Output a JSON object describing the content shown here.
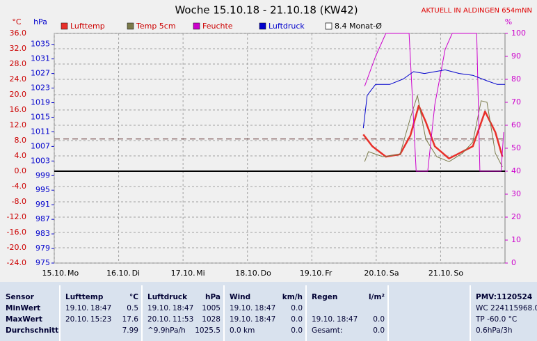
{
  "chart_data": {
    "type": "line",
    "title": "Woche 15.10.18 - 21.10.18 (KW42)",
    "station": "AKTUELL IN ALDINGEN 654mNN",
    "y_unit": "°C",
    "y2_unit": "hPa",
    "y3_unit": "%",
    "xlim": [
      0,
      7
    ],
    "xticks": [
      {
        "value": 0,
        "label": "15.10.",
        "day": "Mo"
      },
      {
        "value": 1,
        "label": "16.10.",
        "day": "Di"
      },
      {
        "value": 2,
        "label": "17.10.",
        "day": "Mi"
      },
      {
        "value": 3,
        "label": "18.10.",
        "day": "Do"
      },
      {
        "value": 4,
        "label": "19.10.",
        "day": "Fr"
      },
      {
        "value": 5,
        "label": "20.10.",
        "day": "Sa"
      },
      {
        "value": 6,
        "label": "21.10.",
        "day": "So"
      }
    ],
    "ylim": [
      -24,
      36
    ],
    "yticks": [
      {
        "value": -24,
        "label": "-24.0"
      },
      {
        "value": -20,
        "label": "-20.0"
      },
      {
        "value": -16,
        "label": "-16.0"
      },
      {
        "value": -12,
        "label": "-12.0"
      },
      {
        "value": -8,
        "label": "-8.0"
      },
      {
        "value": -4,
        "label": "-4.0"
      },
      {
        "value": 0,
        "label": "0.0"
      },
      {
        "value": 4,
        "label": "4.0"
      },
      {
        "value": 8,
        "label": "8.0"
      },
      {
        "value": 12,
        "label": "12.0"
      },
      {
        "value": 16,
        "label": "16.0"
      },
      {
        "value": 20,
        "label": "20.0"
      },
      {
        "value": 24,
        "label": "24.0"
      },
      {
        "value": 28,
        "label": "28.0"
      },
      {
        "value": 32,
        "label": "32.0"
      },
      {
        "value": 36,
        "label": "36.0"
      }
    ],
    "y2lim": [
      975,
      1038
    ],
    "y2ticks": [
      975,
      979,
      983,
      987,
      991,
      995,
      999,
      1003,
      1007,
      1011,
      1015,
      1019,
      1023,
      1027,
      1031,
      1035
    ],
    "y3lim": [
      0,
      100
    ],
    "y3ticks": [
      0,
      10,
      20,
      30,
      40,
      50,
      60,
      70,
      80,
      90,
      100
    ],
    "grid": true,
    "series": [
      {
        "name": "Lufttemp",
        "color": "#e8302a",
        "text_color": "#cc0000",
        "axis": "y",
        "width": 2.5,
        "x": [
          4.8,
          4.94,
          5.15,
          5.37,
          5.53,
          5.66,
          5.77,
          5.91,
          6.13,
          6.29,
          6.5,
          6.69,
          6.85,
          6.96
        ],
        "values": [
          9.6,
          6.5,
          3.8,
          4.4,
          9.3,
          17.1,
          12.9,
          6.5,
          3.3,
          4.7,
          6.5,
          15.6,
          10.2,
          3.8
        ]
      },
      {
        "name": "Temp 5cm",
        "color": "#7a7a4a",
        "text_color": "#cc0000",
        "axis": "y",
        "width": 1,
        "x": [
          4.82,
          4.88,
          5.1,
          5.37,
          5.53,
          5.64,
          5.77,
          5.94,
          6.13,
          6.34,
          6.5,
          6.63,
          6.72,
          6.85,
          6.96
        ],
        "values": [
          2.5,
          5.1,
          3.8,
          4.4,
          13.9,
          19.8,
          8.4,
          3.8,
          2.5,
          4.7,
          7.6,
          18.4,
          18.0,
          4.7,
          1.1
        ]
      },
      {
        "name": "Feuchte",
        "color": "#cc00cc",
        "text_color": "#cc0000",
        "axis": "y3",
        "width": 1,
        "x": [
          4.82,
          4.99,
          5.15,
          5.51,
          5.62,
          5.8,
          5.91,
          6.07,
          6.18,
          6.56,
          6.61,
          6.94,
          6.98
        ],
        "values": [
          77,
          90,
          100,
          100,
          40,
          40,
          69,
          93,
          100,
          100,
          40,
          40,
          57
        ]
      },
      {
        "name": "Luftdruck",
        "color": "#0000cc",
        "text_color": "#0000cc",
        "axis": "y2",
        "width": 1,
        "x": [
          4.8,
          4.86,
          4.99,
          5.21,
          5.42,
          5.58,
          5.75,
          5.91,
          6.07,
          6.29,
          6.5,
          6.72,
          6.88,
          7.0
        ],
        "values": [
          1012,
          1021,
          1024,
          1024,
          1025.5,
          1027.5,
          1027,
          1027.5,
          1028,
          1027,
          1026.5,
          1025,
          1024,
          1024
        ]
      }
    ],
    "monthly_avg": 8.4,
    "monthly_avg_label": "8.4 Monat-Ø"
  },
  "table": {
    "sensor_title": "Sensor",
    "columns": [
      {
        "title": "Lufttemp",
        "unit": "°C"
      },
      {
        "title": "Luftdruck",
        "unit": "hPa"
      },
      {
        "title": "Wind",
        "unit": "km/h"
      },
      {
        "title": "Regen",
        "unit": "l/m²"
      }
    ],
    "extra_title": "PMV:1120524",
    "rows": [
      {
        "label": "MinWert",
        "extra": "WC 224115968.0",
        "cells": [
          {
            "date": "19.10.",
            "time": "18:47",
            "value": "0.5"
          },
          {
            "date": "19.10.",
            "time": "18:47",
            "value": "1005"
          },
          {
            "date": "19.10.",
            "time": "18:47",
            "value": "0.0"
          },
          null
        ]
      },
      {
        "label": "MaxWert",
        "extra": "TP -60.0 °C",
        "cells": [
          {
            "date": "20.10.",
            "time": "15:23",
            "value": "17.6"
          },
          {
            "date": "20.10.",
            "time": "11:53",
            "value": "1028"
          },
          {
            "date": "19.10.",
            "time": "18:47",
            "value": "0.0"
          },
          {
            "date": "19.10.",
            "time": "18:47",
            "value": "0.0"
          }
        ]
      },
      {
        "label": "Durchschnitt",
        "extra": "0.6hPa/3h",
        "cells": [
          {
            "value": "7.99"
          },
          {
            "note": "^9.9hPa/h",
            "value": "1025.5"
          },
          {
            "note": "0.0 km",
            "value": "0.0"
          },
          {
            "note": "Gesamt:",
            "value": "0.0"
          }
        ]
      }
    ]
  }
}
